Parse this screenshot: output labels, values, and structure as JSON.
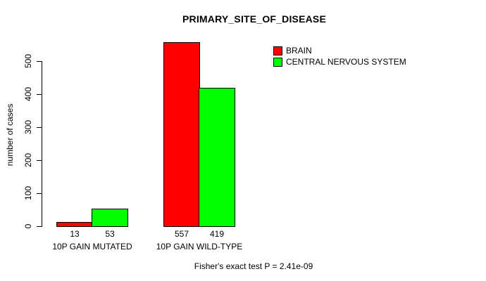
{
  "chart_data": {
    "type": "bar",
    "title": "PRIMARY_SITE_OF_DISEASE",
    "ylabel": "number of cases",
    "xlabel": "",
    "categories": [
      "10P GAIN MUTATED",
      "10P GAIN WILD-TYPE"
    ],
    "series": [
      {
        "name": "BRAIN",
        "color": "#ff0000",
        "values": [
          13,
          557
        ]
      },
      {
        "name": "CENTRAL NERVOUS SYSTEM",
        "color": "#00ff00",
        "values": [
          53,
          419
        ]
      }
    ],
    "yticks": [
      0,
      100,
      200,
      300,
      400,
      500
    ],
    "ylim": [
      0,
      500
    ],
    "bar_value_labels": [
      [
        13,
        557
      ],
      [
        53,
        419
      ]
    ],
    "legend_position": "top-right",
    "grid": false,
    "annotation": "Fisher's exact test P = 2.41e-09",
    "colors": {
      "bar_border": "#000000",
      "axis": "#000000",
      "text": "#000000",
      "background": "#ffffff"
    }
  }
}
